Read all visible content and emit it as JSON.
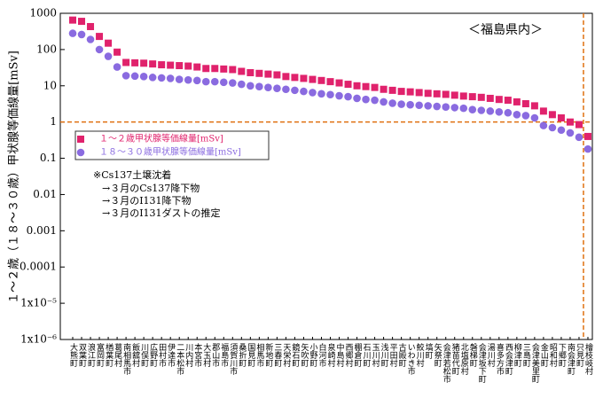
{
  "chart_data": {
    "type": "scatter",
    "title": "＜福島県内＞",
    "y_label": "１～２歳（１８～３０歳）甲状腺等価線量[mSv]",
    "annotations": [
      "※Cs137土壌沈着",
      "→３月のCs137降下物",
      "→３月のI131降下物",
      "→３月のI131ダストの推定"
    ],
    "categories": [
      "大熊町",
      "双葉町",
      "浪江町",
      "富岡町",
      "楢葉町",
      "葛尾村",
      "南相馬市",
      "飯舘村",
      "川俣町",
      "広野町",
      "田村市",
      "伊達市",
      "二本松市",
      "川内村",
      "本宮市",
      "大玉村",
      "郡山市",
      "福島市",
      "須賀川市",
      "桑折町",
      "国見町",
      "相馬市",
      "新地町",
      "三春町",
      "天栄村",
      "鏡石町",
      "矢吹町",
      "小野町",
      "白河市",
      "泉崎村",
      "中島村",
      "西郷村",
      "棚倉町",
      "石川町",
      "玉川村",
      "浅川町",
      "平田村",
      "古殿町",
      "いわき市",
      "鮫川村",
      "塙町",
      "矢祭町",
      "会津若松市",
      "猪苗代町",
      "北塩原村",
      "磐梯町",
      "会津坂下町",
      "湯川村",
      "喜多方市",
      "西会津町",
      "柳津町",
      "三島町",
      "会津美里町",
      "金山町",
      "昭和村",
      "下郷町",
      "南会津町",
      "只見町",
      "檜枝岐村"
    ],
    "series": [
      {
        "name": "１～２歳甲状腺等価線量[mSv]",
        "color": "#e0226c",
        "marker": "square",
        "values": [
          650,
          600,
          430,
          230,
          150,
          85,
          44,
          43,
          42,
          40,
          38,
          37,
          36,
          35,
          33,
          30,
          30,
          29,
          28,
          25,
          23,
          22,
          21,
          20,
          18,
          17,
          16,
          15,
          14,
          13,
          12,
          11,
          10,
          9.5,
          9,
          8,
          7.5,
          7,
          6.8,
          6.5,
          6.2,
          6,
          5.8,
          5.5,
          5.2,
          5,
          4.8,
          4.5,
          4.2,
          4,
          3.6,
          3.2,
          2.8,
          2,
          1.6,
          1.3,
          1.0,
          0.85,
          0.4
        ]
      },
      {
        "name": "１８～３０歳甲状腺等価線量[mSv]",
        "color": "#8a6be0",
        "marker": "circle",
        "values": [
          280,
          260,
          190,
          100,
          65,
          33,
          19,
          18.5,
          18,
          17,
          16.5,
          16,
          15,
          14.5,
          14,
          13,
          13,
          12.5,
          12,
          11,
          10,
          9.5,
          9,
          8.5,
          8,
          7.5,
          7,
          6.5,
          6,
          5.7,
          5.3,
          5,
          4.5,
          4.2,
          4,
          3.6,
          3.3,
          3.1,
          3,
          2.9,
          2.8,
          2.7,
          2.6,
          2.5,
          2.4,
          2.2,
          2.1,
          2,
          1.9,
          1.8,
          1.6,
          1.5,
          1.3,
          0.8,
          0.7,
          0.6,
          0.5,
          0.38,
          0.18
        ]
      }
    ],
    "log_y": true,
    "ylim": [
      1e-06,
      1000
    ],
    "yticks": [
      {
        "value": 1e-06,
        "label": "1x10⁻⁶"
      },
      {
        "value": 1e-05,
        "label": "1x10⁻⁵"
      },
      0.0001,
      0.001,
      0.01,
      0.1,
      1,
      10,
      100,
      1000
    ],
    "hline": 1,
    "vline_index": 57,
    "ref_color": "#e07010"
  }
}
